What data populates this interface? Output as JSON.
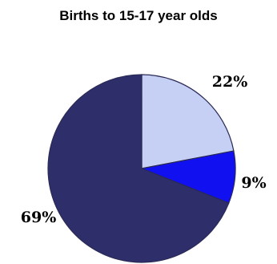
{
  "chart_data": {
    "type": "pie",
    "title": "Births to 15-17 year olds",
    "slices": [
      {
        "label": "22%",
        "value": 22,
        "color": "#c6d0f5"
      },
      {
        "label": "9%",
        "value": 9,
        "color": "#1010f0"
      },
      {
        "label": "69%",
        "value": 69,
        "color": "#2e2e6b"
      }
    ],
    "start_angle_deg": 0,
    "direction": "clockwise",
    "border_color": "#2a2a55"
  }
}
